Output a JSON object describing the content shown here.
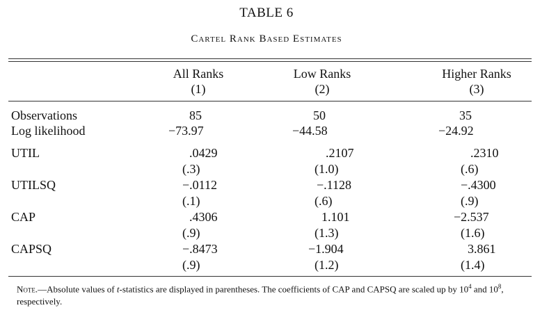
{
  "title": "TABLE 6",
  "subtitle": "Cartel Rank Based Estimates",
  "columns": [
    {
      "name": "All Ranks",
      "number": "(1)"
    },
    {
      "name": "Low Ranks",
      "number": "(2)"
    },
    {
      "name": "Higher Ranks",
      "number": "(3)"
    }
  ],
  "rows": {
    "observations": {
      "label": "Observations",
      "values": [
        "85",
        "50",
        "35"
      ]
    },
    "loglik": {
      "label": "Log likelihood",
      "values": [
        "−73.97",
        "−44.58",
        "−24.92"
      ]
    },
    "util": {
      "label": "UTIL",
      "values": [
        ".0429",
        ".2107",
        ".2310"
      ],
      "tstats": [
        "(.3)",
        "(1.0)",
        "(.6)"
      ]
    },
    "utilsq": {
      "label": "UTILSQ",
      "values": [
        "−.0112",
        "−.1128",
        "−.4300"
      ],
      "tstats": [
        "(.1)",
        "(.6)",
        "(.9)"
      ]
    },
    "cap": {
      "label": "CAP",
      "values": [
        ".4306",
        "1.101",
        "−2.537"
      ],
      "tstats": [
        "(.9)",
        "(1.3)",
        "(1.6)"
      ]
    },
    "capsq": {
      "label": "CAPSQ",
      "values": [
        "−.8473",
        "−1.904",
        "3.861"
      ],
      "tstats": [
        "(.9)",
        "(1.2)",
        "(1.4)"
      ]
    }
  },
  "note": {
    "prefix": "Note.",
    "text1": "—Absolute values of ",
    "t_italic": "t",
    "text2": "-statistics are displayed in parentheses. The coefficients of CAP and CAPSQ are scaled up by 10",
    "exp1": "4",
    "text3": " and 10",
    "exp2": "8",
    "text4": ", respectively."
  }
}
